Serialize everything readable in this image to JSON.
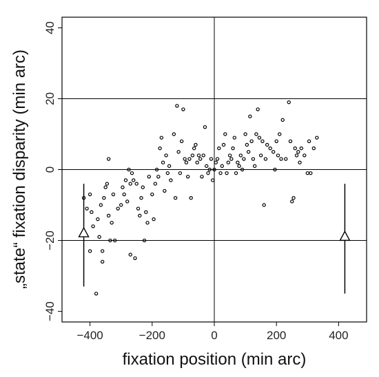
{
  "chart_data": {
    "type": "scatter",
    "title": "",
    "xlabel": "fixation position (min arc)",
    "ylabel": "„state“ fixation disparity (min arc)",
    "xlim": [
      -490,
      490
    ],
    "ylim": [
      -43,
      43
    ],
    "xticks": [
      -400,
      -200,
      0,
      200,
      400
    ],
    "yticks": [
      -40,
      -20,
      0,
      20,
      40
    ],
    "gridlines_y": [
      -20,
      0,
      20
    ],
    "gridlines_x": [
      0
    ],
    "grid": "partial",
    "legend": "none",
    "marker": "open-circle",
    "marker_color": "#000000",
    "points": [
      [
        -420,
        -8
      ],
      [
        -410,
        -11
      ],
      [
        -400,
        -7
      ],
      [
        -395,
        -12
      ],
      [
        -390,
        -16
      ],
      [
        -400,
        -23
      ],
      [
        -380,
        -35
      ],
      [
        -375,
        -14
      ],
      [
        -370,
        -19
      ],
      [
        -365,
        -10
      ],
      [
        -360,
        -26
      ],
      [
        -360,
        -23
      ],
      [
        -355,
        -8
      ],
      [
        -350,
        -5
      ],
      [
        -345,
        -4
      ],
      [
        -340,
        3
      ],
      [
        -340,
        -13
      ],
      [
        -335,
        -20
      ],
      [
        -330,
        -15
      ],
      [
        -325,
        -7
      ],
      [
        -320,
        -20
      ],
      [
        -310,
        -11
      ],
      [
        -300,
        -10
      ],
      [
        -295,
        -5
      ],
      [
        -290,
        -7
      ],
      [
        -285,
        -3
      ],
      [
        -280,
        -9
      ],
      [
        -275,
        0
      ],
      [
        -270,
        -24
      ],
      [
        -270,
        -4
      ],
      [
        -265,
        -1
      ],
      [
        -260,
        -3
      ],
      [
        -255,
        -25
      ],
      [
        -250,
        -4
      ],
      [
        -245,
        -11
      ],
      [
        -240,
        -13
      ],
      [
        -235,
        -8
      ],
      [
        -230,
        -5
      ],
      [
        -225,
        -20
      ],
      [
        -220,
        -12
      ],
      [
        -215,
        -15
      ],
      [
        -210,
        -2
      ],
      [
        -200,
        -7
      ],
      [
        -195,
        -14
      ],
      [
        -190,
        -4
      ],
      [
        -185,
        0
      ],
      [
        -180,
        -2
      ],
      [
        -175,
        6
      ],
      [
        -170,
        9
      ],
      [
        -165,
        2
      ],
      [
        -160,
        -6
      ],
      [
        -155,
        4
      ],
      [
        -150,
        -1
      ],
      [
        -145,
        1
      ],
      [
        -140,
        -3
      ],
      [
        -130,
        10
      ],
      [
        -125,
        -8
      ],
      [
        -120,
        18
      ],
      [
        -115,
        5
      ],
      [
        -110,
        -1
      ],
      [
        -105,
        8
      ],
      [
        -100,
        17
      ],
      [
        -95,
        3
      ],
      [
        -90,
        2
      ],
      [
        -85,
        -2
      ],
      [
        -80,
        3
      ],
      [
        -75,
        -8
      ],
      [
        -70,
        4
      ],
      [
        -65,
        6
      ],
      [
        -60,
        7
      ],
      [
        -55,
        2
      ],
      [
        -50,
        4
      ],
      [
        -45,
        3
      ],
      [
        -40,
        -2
      ],
      [
        -35,
        4
      ],
      [
        -30,
        12
      ],
      [
        -25,
        1
      ],
      [
        -20,
        -1
      ],
      [
        -15,
        0
      ],
      [
        -10,
        3
      ],
      [
        -5,
        -3
      ],
      [
        0,
        0
      ],
      [
        5,
        2
      ],
      [
        10,
        3
      ],
      [
        15,
        6
      ],
      [
        20,
        -1
      ],
      [
        25,
        1
      ],
      [
        30,
        7
      ],
      [
        35,
        10
      ],
      [
        40,
        -1
      ],
      [
        45,
        2
      ],
      [
        50,
        4
      ],
      [
        55,
        3
      ],
      [
        60,
        6
      ],
      [
        65,
        9
      ],
      [
        70,
        -1
      ],
      [
        75,
        2
      ],
      [
        80,
        1
      ],
      [
        85,
        4
      ],
      [
        90,
        0
      ],
      [
        95,
        3
      ],
      [
        100,
        10
      ],
      [
        105,
        7
      ],
      [
        110,
        5
      ],
      [
        115,
        15
      ],
      [
        120,
        8
      ],
      [
        125,
        3
      ],
      [
        130,
        1
      ],
      [
        135,
        10
      ],
      [
        140,
        17
      ],
      [
        145,
        9
      ],
      [
        150,
        4
      ],
      [
        155,
        8
      ],
      [
        160,
        -10
      ],
      [
        165,
        3
      ],
      [
        170,
        7
      ],
      [
        180,
        6
      ],
      [
        190,
        5
      ],
      [
        195,
        0
      ],
      [
        200,
        8
      ],
      [
        205,
        4
      ],
      [
        210,
        10
      ],
      [
        215,
        3
      ],
      [
        220,
        14
      ],
      [
        230,
        3
      ],
      [
        240,
        19
      ],
      [
        245,
        8
      ],
      [
        250,
        -9
      ],
      [
        255,
        -8
      ],
      [
        260,
        6
      ],
      [
        265,
        4
      ],
      [
        270,
        5
      ],
      [
        275,
        2
      ],
      [
        280,
        6
      ],
      [
        290,
        4
      ],
      [
        300,
        -1
      ],
      [
        305,
        8
      ],
      [
        310,
        -1
      ],
      [
        320,
        6
      ],
      [
        330,
        9
      ]
    ],
    "annotations": [
      {
        "type": "range-arrow",
        "x": -420,
        "y_low": -33,
        "y_high": -4,
        "y_tip": -18
      },
      {
        "type": "range-arrow",
        "x": 420,
        "y_low": -35,
        "y_high": -4,
        "y_tip": -19
      }
    ]
  }
}
